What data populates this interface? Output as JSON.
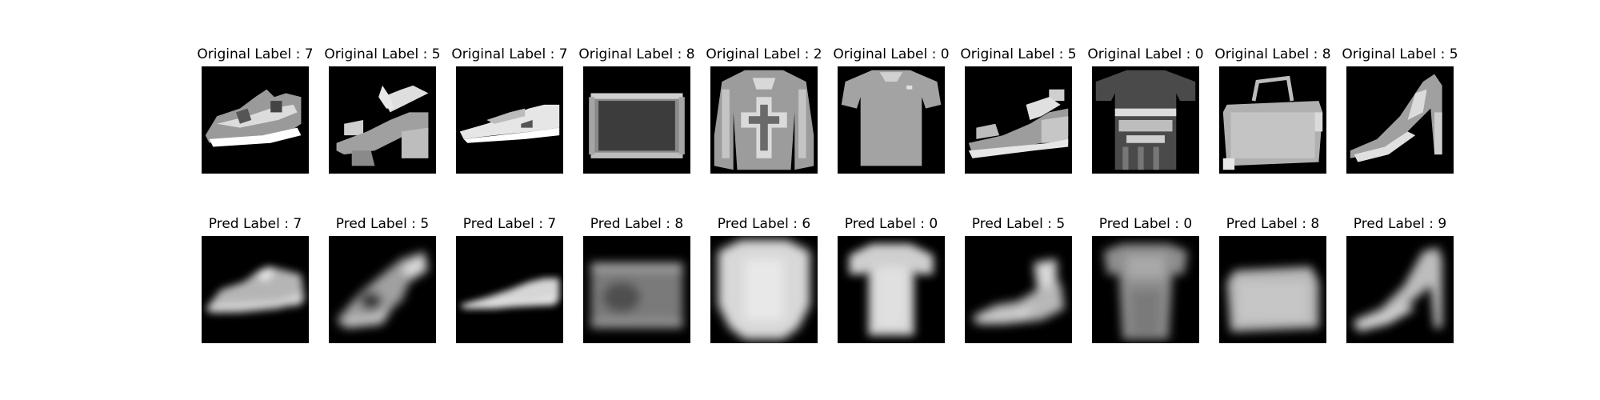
{
  "rows": [
    {
      "kind": "original",
      "panels": [
        {
          "title": "Original Label : 7",
          "label": 7,
          "item": "sneaker"
        },
        {
          "title": "Original Label : 5",
          "label": 5,
          "item": "sandal"
        },
        {
          "title": "Original Label : 7",
          "label": 7,
          "item": "sneaker"
        },
        {
          "title": "Original Label : 8",
          "label": 8,
          "item": "bag"
        },
        {
          "title": "Original Label : 2",
          "label": 2,
          "item": "pullover"
        },
        {
          "title": "Original Label : 0",
          "label": 0,
          "item": "t-shirt"
        },
        {
          "title": "Original Label : 5",
          "label": 5,
          "item": "sandal"
        },
        {
          "title": "Original Label : 0",
          "label": 0,
          "item": "t-shirt"
        },
        {
          "title": "Original Label : 8",
          "label": 8,
          "item": "bag"
        },
        {
          "title": "Original Label : 5",
          "label": 5,
          "item": "sandal"
        }
      ]
    },
    {
      "kind": "predicted",
      "panels": [
        {
          "title": "Pred Label : 7",
          "label": 7,
          "item": "sneaker"
        },
        {
          "title": "Pred Label : 5",
          "label": 5,
          "item": "sandal"
        },
        {
          "title": "Pred Label : 7",
          "label": 7,
          "item": "sneaker"
        },
        {
          "title": "Pred Label : 8",
          "label": 8,
          "item": "bag"
        },
        {
          "title": "Pred Label : 6",
          "label": 6,
          "item": "shirt"
        },
        {
          "title": "Pred Label : 0",
          "label": 0,
          "item": "t-shirt"
        },
        {
          "title": "Pred Label : 5",
          "label": 5,
          "item": "sandal"
        },
        {
          "title": "Pred Label : 0",
          "label": 0,
          "item": "t-shirt"
        },
        {
          "title": "Pred Label : 8",
          "label": 8,
          "item": "bag"
        },
        {
          "title": "Pred Label : 9",
          "label": 9,
          "item": "ankle-boot"
        }
      ]
    }
  ],
  "colors": {
    "background": "#ffffff",
    "image_background": "#000000",
    "text": "#000000"
  }
}
